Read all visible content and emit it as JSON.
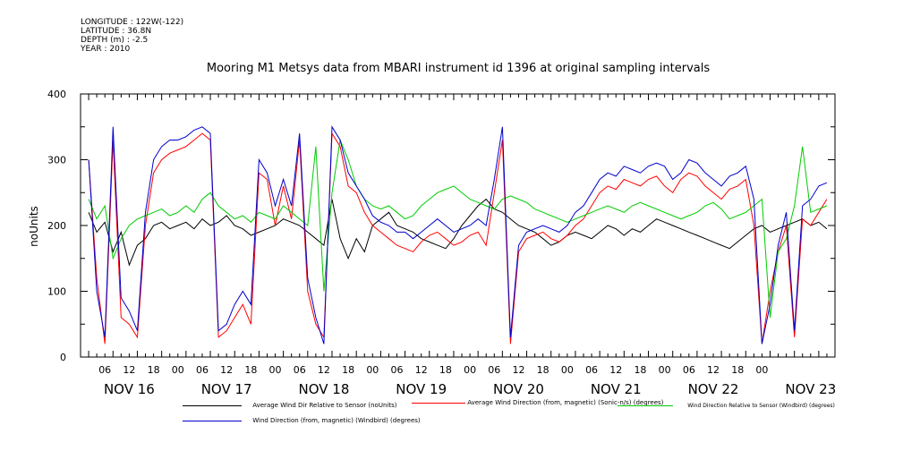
{
  "meta": {
    "longitude": "LONGITUDE : 122W(-122)",
    "latitude": "LATITUDE : 36.8N",
    "depth": "DEPTH (m) : -2.5",
    "year": "YEAR : 2010"
  },
  "chart_data": {
    "type": "line",
    "title": "Mooring M1 Metsys data from MBARI instrument id 1396 at original sampling intervals",
    "ylabel": "noUnits",
    "xlabel": "",
    "ylim": [
      0,
      400
    ],
    "y_ticks": [
      "0",
      "100",
      "200",
      "300",
      "400"
    ],
    "x_hours_start": 0,
    "x_hours_end": 186,
    "x_tick_labels": [
      "06",
      "12",
      "18",
      "00",
      "06",
      "12",
      "18",
      "00",
      "06",
      "12",
      "18",
      "00",
      "06",
      "12",
      "18",
      "00",
      "06",
      "12",
      "18",
      "00",
      "06",
      "12",
      "18",
      "00",
      "06",
      "12",
      "18",
      "00"
    ],
    "date_labels": [
      "NOV 16",
      "NOV 17",
      "NOV 18",
      "NOV 19",
      "NOV 20",
      "NOV 21",
      "NOV 22",
      "NOV 23"
    ],
    "grid": false,
    "legend_position": "bottom",
    "series": [
      {
        "name": "Average Wind Dir Relative to Sensor (noUnits)",
        "color": "#000000",
        "x": [
          2,
          4,
          6,
          8,
          10,
          12,
          14,
          16,
          18,
          20,
          22,
          24,
          26,
          28,
          30,
          32,
          34,
          36,
          38,
          40,
          42,
          44,
          46,
          48,
          50,
          52,
          54,
          56,
          58,
          60,
          62,
          64,
          66,
          68,
          70,
          72,
          74,
          76,
          78,
          80,
          82,
          84,
          86,
          88,
          90,
          92,
          94,
          96,
          98,
          100,
          102,
          104,
          106,
          108,
          110,
          112,
          114,
          116,
          118,
          120,
          122,
          124,
          126,
          128,
          130,
          132,
          134,
          136,
          138,
          140,
          142,
          144,
          146,
          148,
          150,
          152,
          154,
          156,
          158,
          160,
          162,
          164,
          166,
          168,
          170,
          172,
          174,
          176,
          178,
          180,
          182,
          184
        ],
        "y": [
          220,
          190,
          205,
          160,
          190,
          140,
          170,
          180,
          200,
          205,
          195,
          200,
          205,
          195,
          210,
          200,
          205,
          215,
          200,
          195,
          185,
          190,
          195,
          200,
          210,
          205,
          200,
          190,
          180,
          170,
          240,
          180,
          150,
          180,
          160,
          200,
          210,
          220,
          200,
          195,
          190,
          180,
          175,
          170,
          165,
          180,
          200,
          215,
          230,
          240,
          225,
          220,
          210,
          200,
          195,
          190,
          180,
          170,
          175,
          185,
          190,
          185,
          180,
          190,
          200,
          195,
          185,
          195,
          190,
          200,
          210,
          205,
          200,
          195,
          190,
          185,
          180,
          175,
          170,
          165,
          175,
          185,
          195,
          200,
          190,
          195,
          200,
          205,
          210,
          200,
          205,
          195
        ]
      },
      {
        "name": "Average Wind Direction (from, magnetic) (Sonic-n/s) (degrees)",
        "color": "#ff0000",
        "x": [
          2,
          4,
          6,
          8,
          10,
          12,
          14,
          16,
          18,
          20,
          22,
          24,
          26,
          28,
          30,
          32,
          34,
          36,
          38,
          40,
          42,
          44,
          46,
          48,
          50,
          52,
          54,
          56,
          58,
          60,
          62,
          64,
          66,
          68,
          70,
          72,
          74,
          76,
          78,
          80,
          82,
          84,
          86,
          88,
          90,
          92,
          94,
          96,
          98,
          100,
          102,
          104,
          106,
          108,
          110,
          112,
          114,
          116,
          118,
          120,
          122,
          124,
          126,
          128,
          130,
          132,
          134,
          136,
          138,
          140,
          142,
          144,
          146,
          148,
          150,
          152,
          154,
          156,
          158,
          160,
          162,
          164,
          166,
          168,
          170,
          172,
          174,
          176,
          178,
          180,
          182,
          184
        ],
        "y": [
          300,
          120,
          20,
          330,
          60,
          50,
          30,
          200,
          280,
          300,
          310,
          315,
          320,
          330,
          340,
          330,
          30,
          40,
          60,
          80,
          50,
          280,
          270,
          200,
          260,
          210,
          330,
          100,
          50,
          30,
          340,
          320,
          260,
          250,
          220,
          200,
          190,
          180,
          170,
          165,
          160,
          175,
          185,
          190,
          180,
          170,
          175,
          185,
          190,
          170,
          250,
          330,
          20,
          160,
          180,
          185,
          190,
          180,
          175,
          185,
          200,
          210,
          230,
          250,
          260,
          255,
          270,
          265,
          260,
          270,
          275,
          260,
          250,
          270,
          280,
          275,
          260,
          250,
          240,
          255,
          260,
          270,
          200,
          20,
          100,
          160,
          200,
          30,
          210,
          200,
          220,
          240
        ]
      },
      {
        "name": "Wind Direction Relative to Sensor (Windbird) (degrees)",
        "color": "#00cc00",
        "x": [
          2,
          4,
          6,
          8,
          10,
          12,
          14,
          16,
          18,
          20,
          22,
          24,
          26,
          28,
          30,
          32,
          34,
          36,
          38,
          40,
          42,
          44,
          46,
          48,
          50,
          52,
          54,
          56,
          58,
          60,
          62,
          64,
          66,
          68,
          70,
          72,
          74,
          76,
          78,
          80,
          82,
          84,
          86,
          88,
          90,
          92,
          94,
          96,
          98,
          100,
          102,
          104,
          106,
          108,
          110,
          112,
          114,
          116,
          118,
          120,
          122,
          124,
          126,
          128,
          130,
          132,
          134,
          136,
          138,
          140,
          142,
          144,
          146,
          148,
          150,
          152,
          154,
          156,
          158,
          160,
          162,
          164,
          166,
          168,
          170,
          172,
          174,
          176,
          178,
          180,
          182,
          184
        ],
        "y": [
          240,
          210,
          230,
          150,
          180,
          200,
          210,
          215,
          220,
          225,
          215,
          220,
          230,
          220,
          240,
          250,
          230,
          220,
          210,
          215,
          205,
          220,
          215,
          210,
          230,
          220,
          210,
          200,
          320,
          100,
          250,
          330,
          300,
          260,
          240,
          230,
          225,
          230,
          220,
          210,
          215,
          230,
          240,
          250,
          255,
          260,
          250,
          240,
          235,
          230,
          225,
          240,
          245,
          240,
          235,
          225,
          220,
          215,
          210,
          205,
          210,
          215,
          220,
          225,
          230,
          225,
          220,
          230,
          235,
          230,
          225,
          220,
          215,
          210,
          215,
          220,
          230,
          235,
          225,
          210,
          215,
          220,
          230,
          240,
          60,
          160,
          180,
          230,
          320,
          220,
          225,
          230
        ]
      },
      {
        "name": "Wind Direction (from, magnetic) (Windbird) (degrees)",
        "color": "#0000cc",
        "x": [
          2,
          4,
          6,
          8,
          10,
          12,
          14,
          16,
          18,
          20,
          22,
          24,
          26,
          28,
          30,
          32,
          34,
          36,
          38,
          40,
          42,
          44,
          46,
          48,
          50,
          52,
          54,
          56,
          58,
          60,
          62,
          64,
          66,
          68,
          70,
          72,
          74,
          76,
          78,
          80,
          82,
          84,
          86,
          88,
          90,
          92,
          94,
          96,
          98,
          100,
          102,
          104,
          106,
          108,
          110,
          112,
          114,
          116,
          118,
          120,
          122,
          124,
          126,
          128,
          130,
          132,
          134,
          136,
          138,
          140,
          142,
          144,
          146,
          148,
          150,
          152,
          154,
          156,
          158,
          160,
          162,
          164,
          166,
          168,
          170,
          172,
          174,
          176,
          178,
          180,
          182,
          184
        ],
        "y": [
          300,
          100,
          30,
          350,
          90,
          70,
          40,
          220,
          300,
          320,
          330,
          330,
          335,
          345,
          350,
          340,
          40,
          50,
          80,
          100,
          80,
          300,
          280,
          230,
          270,
          230,
          340,
          120,
          60,
          20,
          350,
          330,
          280,
          260,
          240,
          215,
          205,
          200,
          190,
          190,
          180,
          190,
          200,
          210,
          200,
          190,
          195,
          200,
          210,
          200,
          270,
          350,
          30,
          170,
          190,
          195,
          200,
          195,
          190,
          200,
          220,
          230,
          250,
          270,
          280,
          275,
          290,
          285,
          280,
          290,
          295,
          290,
          270,
          280,
          300,
          295,
          280,
          270,
          260,
          275,
          280,
          290,
          240,
          20,
          80,
          170,
          220,
          40,
          230,
          240,
          260,
          265
        ]
      }
    ]
  }
}
